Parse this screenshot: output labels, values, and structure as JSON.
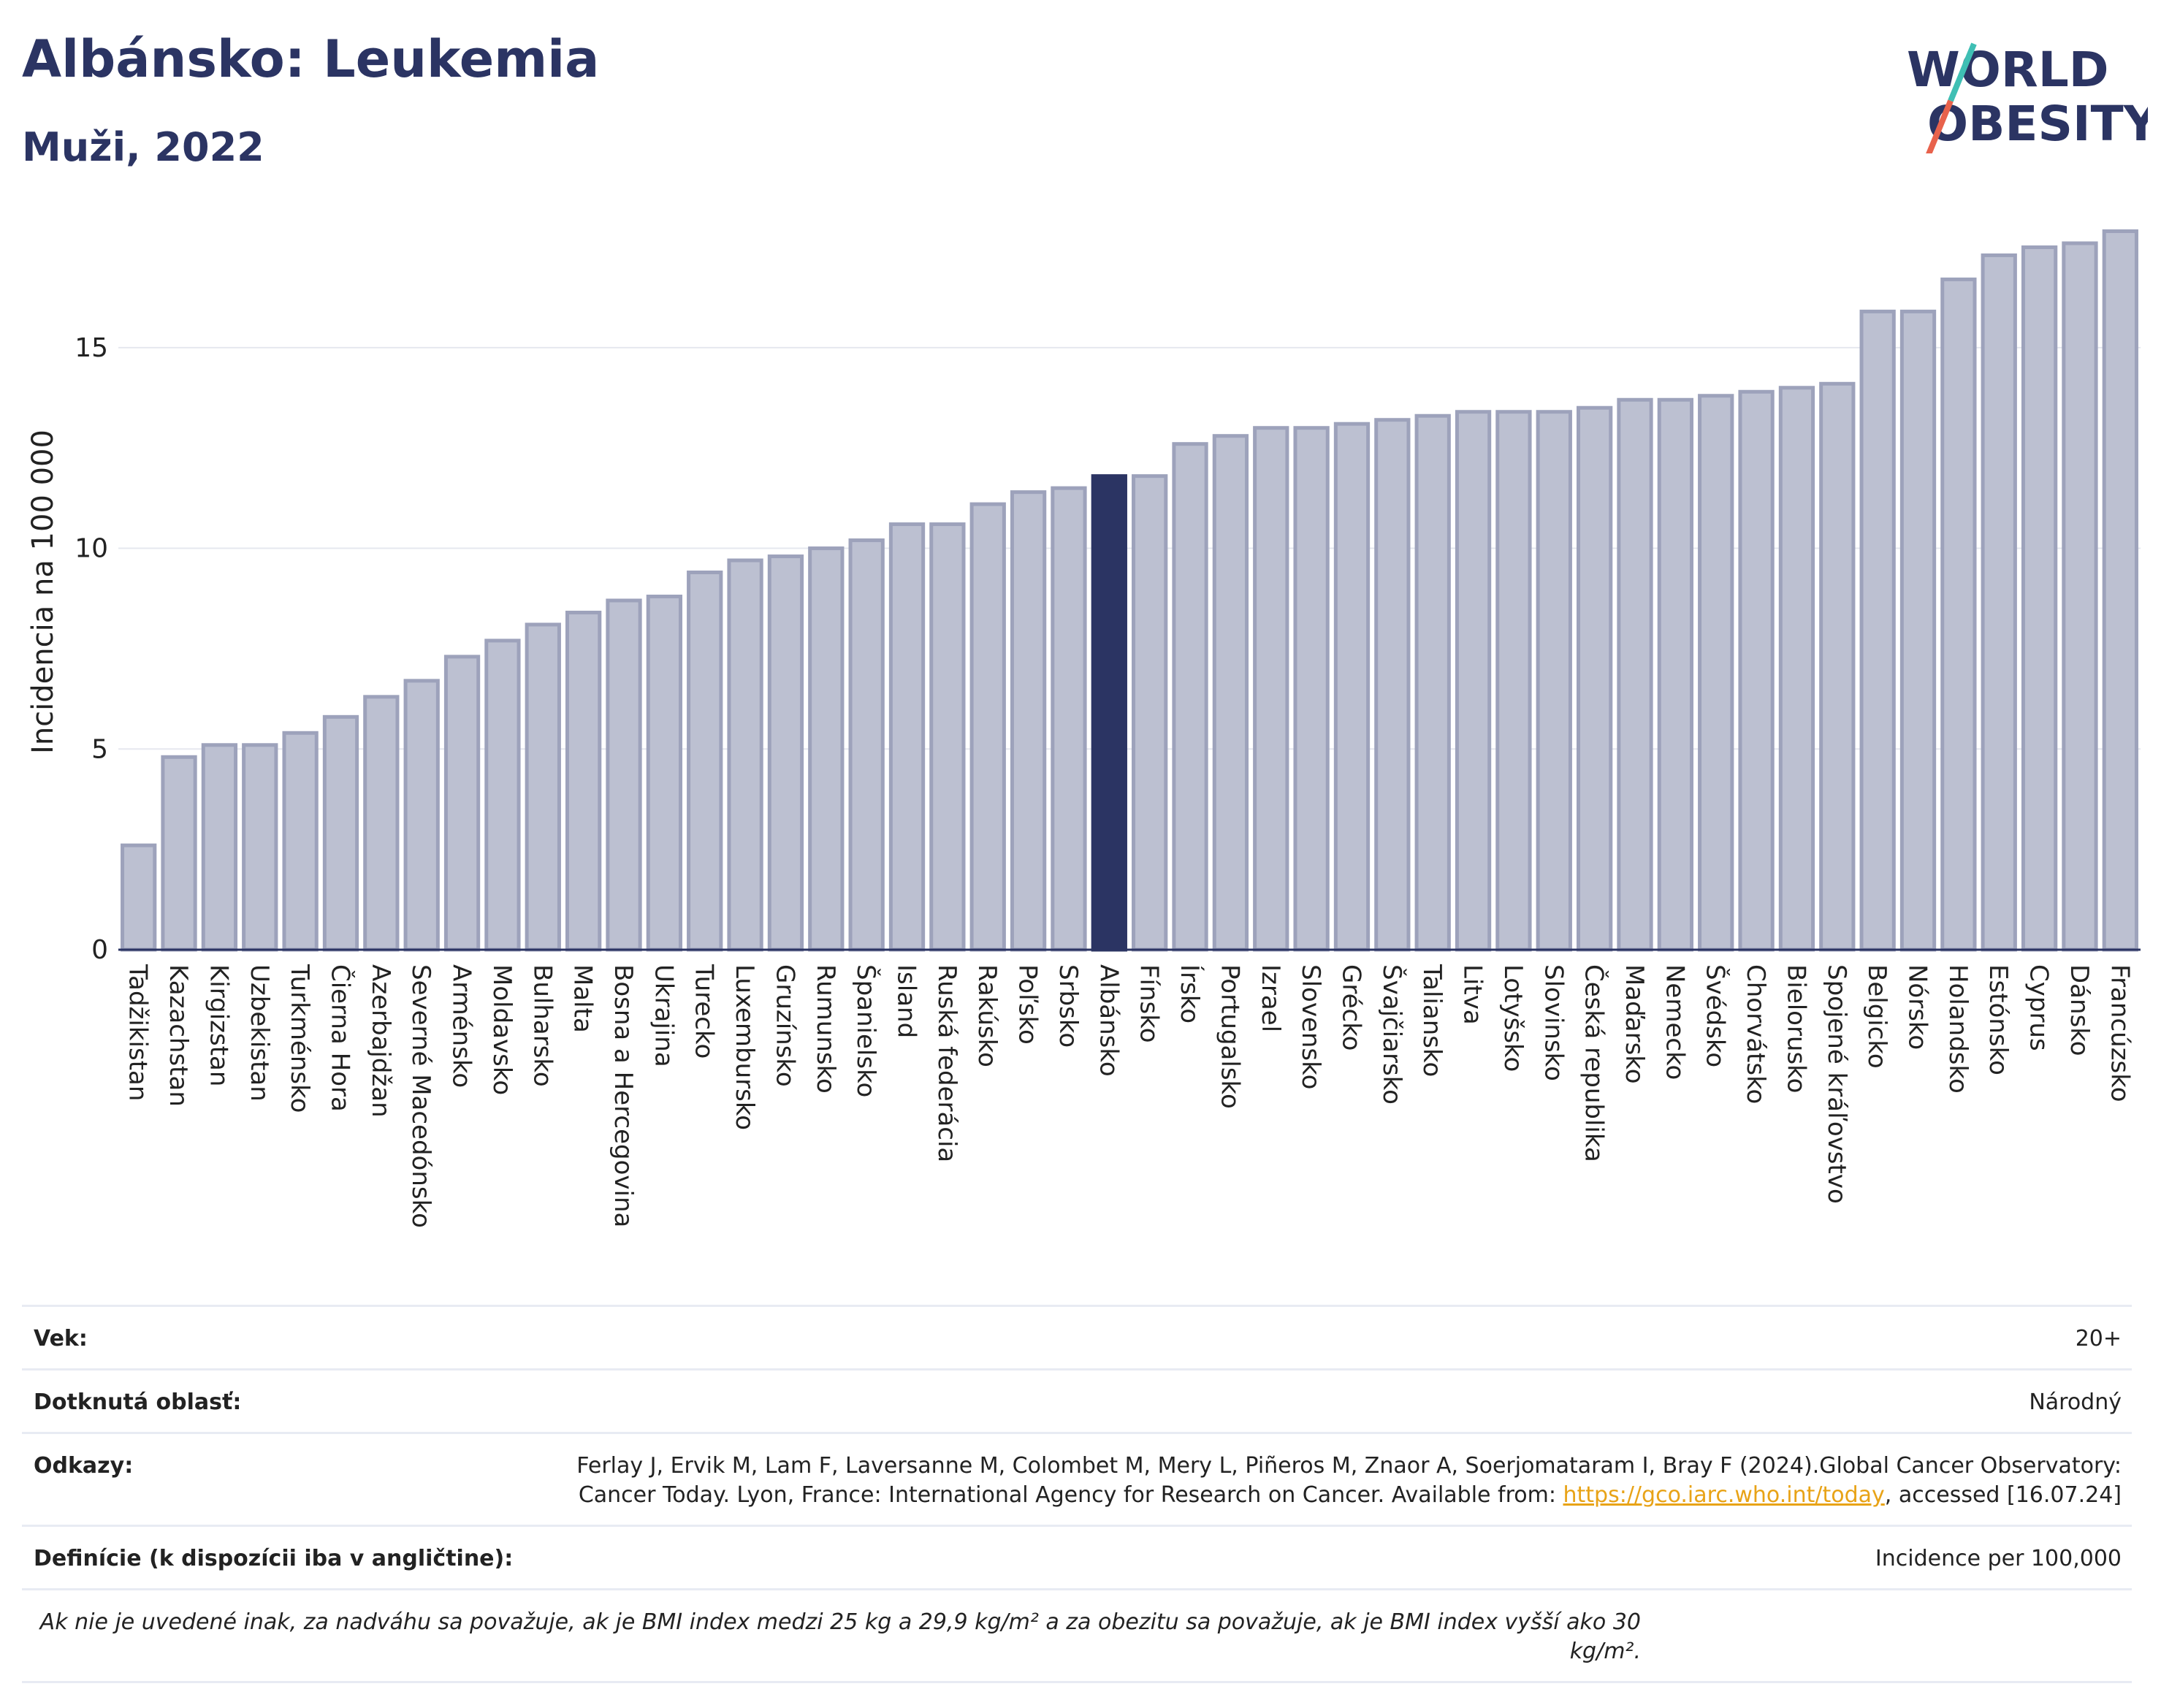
{
  "header": {
    "title": "Albánsko: Leukemia",
    "subtitle": "Muži, 2022"
  },
  "logo": {
    "line1": "WORLD",
    "line2": "OBESITY"
  },
  "colors": {
    "highlight": "#2b3463",
    "bar": "#bcc0d1",
    "bar_stroke": "#9da2bb",
    "accent_teal": "#3fbfb4",
    "accent_red": "#e8624c"
  },
  "chart_data": {
    "type": "bar",
    "ylabel": "Incidencia na 100 000",
    "ylim": [
      0,
      18.2
    ],
    "yticks": [
      0,
      5,
      10,
      15
    ],
    "grid": true,
    "highlight": "Albánsko",
    "categories": [
      "Tadžikistan",
      "Kazachstan",
      "Kirgizstan",
      "Uzbekistan",
      "Turkménsko",
      "Čierna Hora",
      "Azerbajdžan",
      "Severné Macedónsko",
      "Arménsko",
      "Moldavsko",
      "Bulharsko",
      "Malta",
      "Bosna a Hercegovina",
      "Ukrajina",
      "Turecko",
      "Luxembursko",
      "Gruzínsko",
      "Rumunsko",
      "Španielsko",
      "Island",
      "Ruská federácia",
      "Rakúsko",
      "Poľsko",
      "Srbsko",
      "Albánsko",
      "Fínsko",
      "Írsko",
      "Portugalsko",
      "Izrael",
      "Slovensko",
      "Grécko",
      "Švajčiarsko",
      "Taliansko",
      "Litva",
      "Lotyšsko",
      "Slovinsko",
      "Česká republika",
      "Maďarsko",
      "Nemecko",
      "Švédsko",
      "Chorvátsko",
      "Bielorusko",
      "Spojené kráľovstvo",
      "Belgicko",
      "Nórsko",
      "Holandsko",
      "Estónsko",
      "Cyprus",
      "Dánsko",
      "Francúzsko"
    ],
    "values": [
      2.6,
      4.8,
      5.1,
      5.1,
      5.4,
      5.8,
      6.3,
      6.7,
      7.3,
      7.7,
      8.1,
      8.4,
      8.7,
      8.8,
      9.4,
      9.7,
      9.8,
      10.0,
      10.2,
      10.6,
      10.6,
      11.1,
      11.4,
      11.5,
      11.8,
      11.8,
      12.6,
      12.8,
      13.0,
      13.0,
      13.1,
      13.2,
      13.3,
      13.4,
      13.4,
      13.4,
      13.5,
      13.7,
      13.7,
      13.8,
      13.9,
      14.0,
      14.1,
      15.9,
      15.9,
      16.7,
      17.3,
      17.5,
      17.6,
      17.9
    ]
  },
  "info": {
    "age_label": "Vek:",
    "age_value": "20+",
    "area_label": "Dotknutá oblasť:",
    "area_value": "Národný",
    "refs_label": "Odkazy:",
    "refs_text": "Ferlay J, Ervik M, Lam F, Laversanne M, Colombet M, Mery L, Piñeros M, Znaor A, Soerjomataram I, Bray F (2024).Global Cancer Observatory: Cancer Today. Lyon, France: International Agency for Research on Cancer. Available from: ",
    "refs_link": "https://gco.iarc.who.int/today",
    "refs_tail": ", accessed [16.07.24]",
    "def_label": "Definície (k dispozícii iba v angličtine):",
    "def_value": "Incidence per 100,000",
    "note": "Ak nie je uvedené inak, za nadváhu sa považuje, ak je BMI index medzi 25 kg a 29,9 kg/m² a za obezitu sa považuje, ak je BMI index vyšší ako 30 kg/m²."
  }
}
